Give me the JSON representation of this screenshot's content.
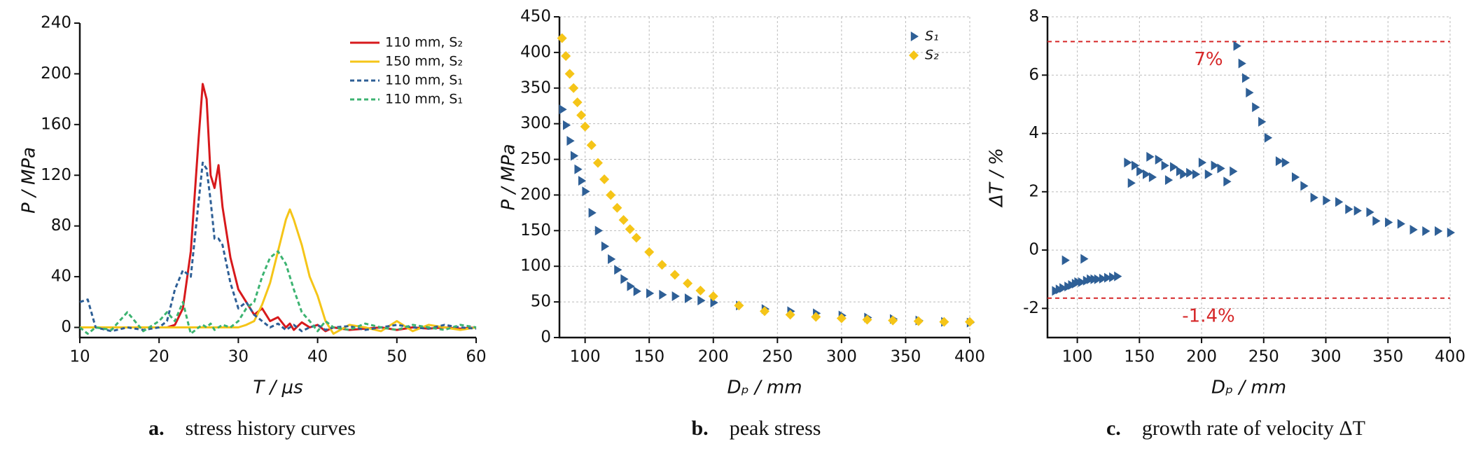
{
  "chart_data": [
    {
      "type": "line",
      "x_label": "T / μs",
      "y_label": "P / MPa",
      "xlim": [
        10,
        60
      ],
      "xticks": [
        10,
        20,
        30,
        40,
        50,
        60
      ],
      "ylim": [
        -8,
        240
      ],
      "yticks": [
        0,
        40,
        80,
        120,
        160,
        200,
        240
      ],
      "grid": false,
      "legend": "upper right",
      "caption": {
        "label": "a.",
        "text": "stress history curves"
      },
      "x": [
        10,
        11,
        12,
        14,
        16,
        18,
        20,
        21,
        22,
        23,
        24,
        25,
        25.5,
        26,
        26.5,
        27,
        27.5,
        28,
        29,
        30,
        31,
        32,
        33,
        34,
        35,
        36,
        36.5,
        37,
        38,
        39,
        40,
        41,
        42,
        44,
        46,
        48,
        50,
        52,
        54,
        56,
        58,
        60
      ],
      "series": [
        {
          "name": "110 mm, S₂",
          "color": "#d7191c",
          "style": "solid",
          "values": [
            0,
            0,
            0,
            0,
            0,
            0,
            0,
            0,
            2,
            15,
            60,
            150,
            192,
            180,
            120,
            110,
            128,
            95,
            55,
            30,
            20,
            10,
            15,
            5,
            8,
            0,
            3,
            -2,
            4,
            0,
            2,
            -3,
            0,
            -2,
            -1,
            0,
            -2,
            0,
            -1,
            0,
            -1,
            0
          ]
        },
        {
          "name": "150 mm, S₂",
          "color": "#f5c518",
          "style": "solid",
          "values": [
            0,
            0,
            0,
            0,
            0,
            0,
            0,
            0,
            0,
            0,
            0,
            0,
            0,
            0,
            0,
            0,
            0,
            0,
            0,
            0,
            2,
            5,
            18,
            35,
            60,
            85,
            93,
            85,
            65,
            40,
            25,
            5,
            -5,
            2,
            0,
            -3,
            5,
            -3,
            2,
            0,
            -2,
            0
          ]
        },
        {
          "name": "110 mm, S₁",
          "color": "#2e5f96",
          "style": "dashed",
          "values": [
            20,
            22,
            0,
            -3,
            0,
            -2,
            0,
            5,
            30,
            45,
            40,
            100,
            130,
            125,
            100,
            70,
            70,
            65,
            35,
            15,
            20,
            10,
            5,
            0,
            3,
            -2,
            0,
            2,
            -3,
            0,
            2,
            -2,
            0,
            1,
            -2,
            0,
            2,
            0,
            -1,
            2,
            0,
            -1
          ]
        },
        {
          "name": "110 mm, S₁",
          "color": "#3cb371",
          "style": "dashed",
          "values": [
            0,
            -5,
            0,
            -2,
            12,
            -3,
            5,
            12,
            5,
            20,
            -5,
            0,
            2,
            0,
            3,
            -2,
            0,
            2,
            0,
            5,
            15,
            20,
            40,
            55,
            60,
            50,
            40,
            30,
            12,
            5,
            -3,
            5,
            0,
            -2,
            3,
            0,
            -2,
            2,
            0,
            -2,
            2,
            0
          ]
        }
      ]
    },
    {
      "type": "scatter",
      "x_label": "Dₚ / mm",
      "y_label": "P / MPa",
      "xlim": [
        80,
        400
      ],
      "xticks": [
        100,
        150,
        200,
        250,
        300,
        350,
        400
      ],
      "ylim": [
        0,
        450
      ],
      "yticks": [
        0,
        50,
        100,
        150,
        200,
        250,
        300,
        350,
        400,
        450
      ],
      "grid": true,
      "legend": "upper right",
      "caption": {
        "label": "b.",
        "text": "peak stress"
      },
      "series": [
        {
          "name": "S₁",
          "color": "#2e5f96",
          "marker": "triangle",
          "x": [
            82,
            85,
            88,
            91,
            94,
            97,
            100,
            105,
            110,
            115,
            120,
            125,
            130,
            135,
            140,
            150,
            160,
            170,
            180,
            190,
            200,
            220,
            240,
            260,
            280,
            300,
            320,
            340,
            360,
            380,
            400
          ],
          "values": [
            320,
            298,
            276,
            255,
            236,
            220,
            205,
            175,
            150,
            128,
            110,
            95,
            82,
            72,
            65,
            62,
            60,
            58,
            55,
            52,
            49,
            45,
            40,
            37,
            34,
            31,
            28,
            26,
            24,
            22,
            21
          ]
        },
        {
          "name": "S₂",
          "color": "#f5c518",
          "marker": "diamond",
          "x": [
            82,
            85,
            88,
            91,
            94,
            97,
            100,
            105,
            110,
            115,
            120,
            125,
            130,
            135,
            140,
            150,
            160,
            170,
            180,
            190,
            200,
            220,
            240,
            260,
            280,
            300,
            320,
            340,
            360,
            380,
            400
          ],
          "values": [
            420,
            395,
            370,
            350,
            330,
            312,
            296,
            270,
            245,
            222,
            200,
            182,
            165,
            152,
            140,
            120,
            102,
            88,
            76,
            66,
            58,
            45,
            37,
            32,
            29,
            27,
            25,
            24,
            23,
            22,
            22
          ]
        }
      ]
    },
    {
      "type": "scatter",
      "x_label": "Dₚ / mm",
      "y_label": "ΔT / %",
      "xlim": [
        76,
        400
      ],
      "xticks": [
        100,
        150,
        200,
        250,
        300,
        350,
        400
      ],
      "ylim": [
        -3,
        8
      ],
      "yticks": [
        -2,
        0,
        2,
        4,
        6,
        8
      ],
      "grid": true,
      "caption": {
        "label": "c.",
        "text": "growth rate of velocity ΔT"
      },
      "hlines": [
        7.15,
        -1.65
      ],
      "hline_color": "#d62728",
      "annotations": [
        "7%",
        "-1.4%"
      ],
      "series": [
        {
          "color": "#2e5f96",
          "marker": "triangle",
          "x": [
            82,
            85,
            88,
            90,
            92,
            95,
            98,
            100,
            103,
            105,
            107,
            110,
            113,
            116,
            120,
            124,
            128,
            132,
            140,
            143,
            146,
            150,
            155,
            158,
            160,
            165,
            170,
            173,
            177,
            182,
            185,
            190,
            195,
            200,
            205,
            210,
            215,
            220,
            225,
            228,
            232,
            235,
            238,
            243,
            248,
            253,
            262,
            267,
            275,
            282,
            290,
            300,
            310,
            318,
            325,
            335,
            340,
            350,
            360,
            370,
            380,
            390,
            400
          ],
          "values": [
            -1.4,
            -1.35,
            -1.3,
            -0.35,
            -1.25,
            -1.2,
            -1.15,
            -1.1,
            -1.1,
            -0.3,
            -1.05,
            -1.0,
            -1.0,
            -1.0,
            -0.98,
            -0.95,
            -0.93,
            -0.9,
            3.0,
            2.3,
            2.9,
            2.7,
            2.6,
            3.2,
            2.5,
            3.1,
            2.9,
            2.4,
            2.85,
            2.7,
            2.6,
            2.65,
            2.6,
            3.0,
            2.6,
            2.9,
            2.8,
            2.35,
            2.7,
            7.0,
            6.4,
            5.9,
            5.4,
            4.9,
            4.4,
            3.85,
            3.05,
            3.0,
            2.5,
            2.2,
            1.8,
            1.7,
            1.65,
            1.4,
            1.35,
            1.3,
            1.0,
            0.95,
            0.9,
            0.7,
            0.65,
            0.65,
            0.6
          ]
        }
      ]
    }
  ]
}
